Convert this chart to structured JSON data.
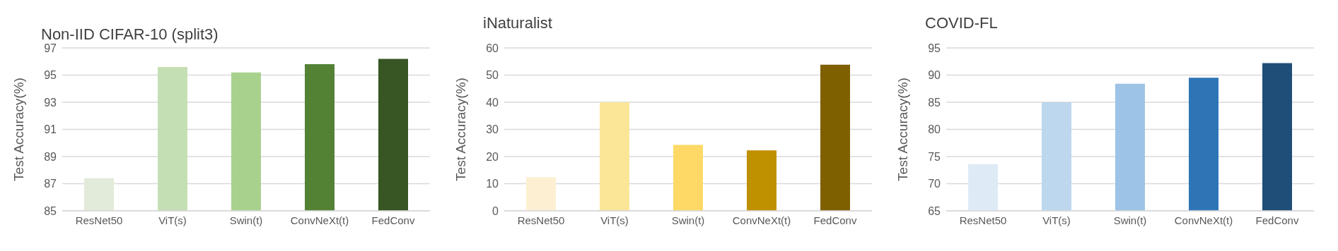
{
  "chart_data": [
    {
      "type": "bar",
      "title": "Non-IID CIFAR-10 (split3)",
      "ylabel": "Test Accuracy(%)",
      "categories": [
        "ResNet50",
        "ViT(s)",
        "Swin(t)",
        "ConvNeXt(t)",
        "FedConv"
      ],
      "values": [
        87.4,
        95.6,
        95.2,
        95.8,
        96.2
      ],
      "colors": [
        "#e2ebd9",
        "#c5dfb4",
        "#a9d18e",
        "#548235",
        "#375623"
      ],
      "ylim": [
        85,
        97
      ],
      "yticks": [
        85,
        87,
        89,
        91,
        93,
        95,
        97
      ],
      "grid": "y"
    },
    {
      "type": "bar",
      "title": "iNaturalist",
      "ylabel": "Test Accuracy(%)",
      "categories": [
        "ResNet50",
        "ViT(s)",
        "Swin(t)",
        "ConvNeXt(t)",
        "FedConv"
      ],
      "values": [
        12.4,
        40.0,
        24.3,
        22.3,
        53.8
      ],
      "colors": [
        "#fdf0d2",
        "#fbe597",
        "#fed966",
        "#bf9000",
        "#7f6000"
      ],
      "ylim": [
        0,
        60
      ],
      "yticks": [
        0,
        10,
        20,
        30,
        40,
        50,
        60
      ],
      "grid": "y"
    },
    {
      "type": "bar",
      "title": "COVID-FL",
      "ylabel": "Test Accuracy(%)",
      "categories": [
        "ResNet50",
        "ViT(s)",
        "Swin(t)",
        "ConvNeXt(t)",
        "FedConv"
      ],
      "values": [
        73.6,
        85.0,
        88.4,
        89.5,
        92.2
      ],
      "colors": [
        "#deebf7",
        "#bdd7ee",
        "#9dc3e6",
        "#2e75b6",
        "#1f4e79"
      ],
      "ylim": [
        65,
        95
      ],
      "yticks": [
        65,
        70,
        75,
        80,
        85,
        90,
        95
      ],
      "grid": "y"
    }
  ]
}
